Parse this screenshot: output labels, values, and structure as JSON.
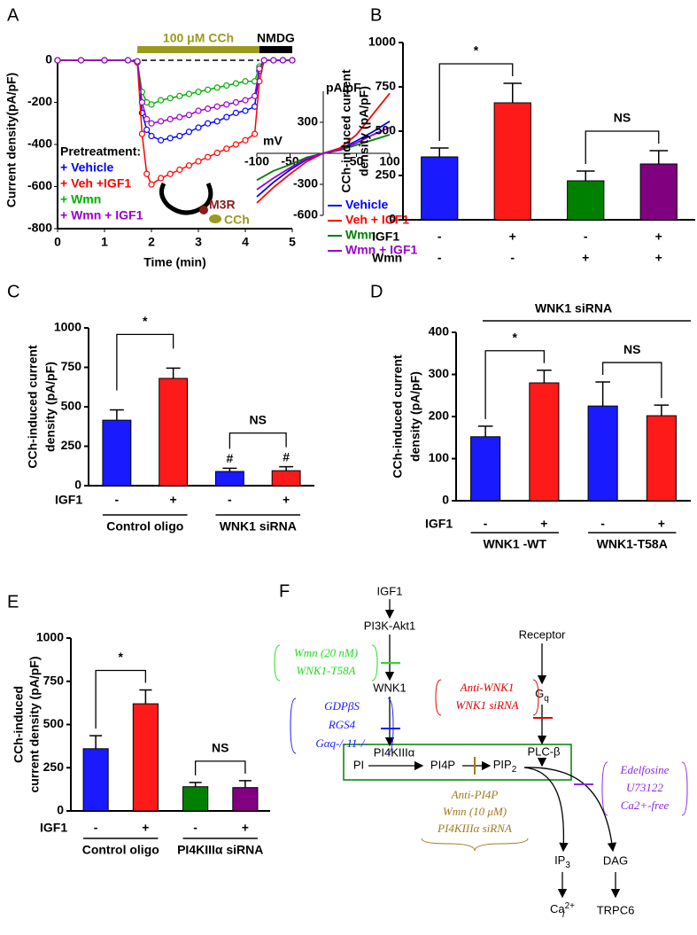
{
  "panel_labels": [
    "A",
    "B",
    "C",
    "D",
    "E",
    "F"
  ],
  "chart_data": [
    {
      "type": "line",
      "xlabel": "Time (min)",
      "ylabel": "Current density(pA/pF)",
      "x": [
        0,
        0.5,
        1,
        1.5,
        1.7,
        1.8,
        1.9,
        2.0,
        2.2,
        2.4,
        2.6,
        2.8,
        3.0,
        3.2,
        3.4,
        3.6,
        3.8,
        4.0,
        4.2,
        4.3,
        4.4,
        4.6,
        4.8,
        5.0
      ],
      "xlim": [
        0,
        5
      ],
      "xticks": [
        0,
        1,
        2,
        3,
        4,
        5
      ],
      "ylim": [
        -800,
        0
      ],
      "yticks": [
        -800,
        -600,
        -400,
        -200,
        0
      ],
      "markers": "circle",
      "legend_title": "Pretreatment:",
      "series": [
        {
          "name": "+ Vehicle",
          "color": "#0000ff",
          "values": [
            0,
            0,
            0,
            0,
            -10,
            -250,
            -330,
            -360,
            -380,
            -370,
            -360,
            -340,
            -320,
            -300,
            -290,
            -270,
            -250,
            -240,
            -220,
            -50,
            0,
            0,
            0,
            0
          ]
        },
        {
          "name": "+ Veh +IGF1",
          "color": "#ff0000",
          "values": [
            0,
            0,
            0,
            0,
            -10,
            -350,
            -540,
            -590,
            -560,
            -540,
            -520,
            -500,
            -480,
            -460,
            -440,
            -420,
            -400,
            -380,
            -350,
            -100,
            0,
            0,
            0,
            0
          ]
        },
        {
          "name": "+ Wmn",
          "color": "#00b000",
          "values": [
            0,
            0,
            0,
            0,
            -5,
            -150,
            -200,
            -210,
            -190,
            -180,
            -170,
            -160,
            -150,
            -140,
            -130,
            -120,
            -110,
            -100,
            -100,
            -30,
            0,
            0,
            0,
            0
          ]
        },
        {
          "name": "+ Wmn + IGF1",
          "color": "#9900cc",
          "values": [
            0,
            0,
            0,
            0,
            -5,
            -200,
            -280,
            -300,
            -290,
            -280,
            -270,
            -260,
            -240,
            -230,
            -220,
            -210,
            -200,
            -190,
            -170,
            -40,
            0,
            0,
            0,
            0
          ]
        }
      ],
      "stimuli": [
        {
          "label": "100 μM CCh",
          "start": 1.7,
          "end": 4.3,
          "color": "#9a9a1e"
        },
        {
          "label": "NMDG",
          "start": 4.3,
          "end": 5,
          "color": "#000000"
        }
      ],
      "annotations": [
        "M3R",
        "CCh"
      ]
    },
    {
      "type": "line",
      "xlabel": "mV",
      "ylabel": "pA/pF",
      "x": [
        -100,
        -75,
        -50,
        -25,
        0,
        25,
        50,
        75,
        100
      ],
      "xlim": [
        -100,
        100
      ],
      "xticks": [
        -100,
        -50,
        50,
        100
      ],
      "ylim": [
        -600,
        600
      ],
      "yticks": [
        -600,
        -300,
        300
      ],
      "series": [
        {
          "name": "Vehicle",
          "color": "#0000ff",
          "values": [
            -420,
            -280,
            -160,
            -60,
            0,
            40,
            120,
            210,
            310
          ]
        },
        {
          "name": "Veh + IGF1",
          "color": "#ff0000",
          "values": [
            -480,
            -330,
            -200,
            -80,
            0,
            50,
            180,
            380,
            580
          ]
        },
        {
          "name": "Wmn",
          "color": "#008000",
          "values": [
            -260,
            -170,
            -110,
            -40,
            0,
            30,
            80,
            130,
            180
          ]
        },
        {
          "name": "Wmn + IGF1",
          "color": "#9900cc",
          "values": [
            -350,
            -240,
            -140,
            -50,
            0,
            35,
            100,
            180,
            250
          ]
        }
      ]
    },
    {
      "type": "bar",
      "ylabel": [
        "CCh-induced current",
        "density (pA/pF)"
      ],
      "ylim": [
        0,
        1000
      ],
      "yticks": [
        0,
        250,
        500,
        750,
        1000
      ],
      "values": [
        355,
        660,
        220,
        315
      ],
      "errors": [
        50,
        110,
        55,
        75
      ],
      "colors": [
        "#1a1aff",
        "#ff1a1a",
        "#008000",
        "#800080"
      ],
      "rows": [
        {
          "label": "IGF1",
          "signs": [
            "-",
            "+",
            "-",
            "+"
          ]
        },
        {
          "label": "Wmn",
          "signs": [
            "-",
            "-",
            "+",
            "+"
          ]
        }
      ],
      "brackets": [
        {
          "label": "*",
          "bars": [
            0,
            1
          ]
        },
        {
          "label": "NS",
          "bars": [
            2,
            3
          ]
        }
      ]
    },
    {
      "type": "bar",
      "ylabel": [
        "CCh-induced current",
        "density (pA/pF)"
      ],
      "ylim": [
        0,
        1000
      ],
      "yticks": [
        0,
        250,
        500,
        750,
        1000
      ],
      "values": [
        415,
        680,
        90,
        95
      ],
      "errors": [
        65,
        65,
        20,
        25
      ],
      "colors": [
        "#1a1aff",
        "#ff1a1a",
        "#1a1aff",
        "#ff1a1a"
      ],
      "rows": [
        {
          "label": "IGF1",
          "signs": [
            "-",
            "+",
            "-",
            "+"
          ]
        }
      ],
      "groups": [
        "Control oligo",
        "WNK1 siRNA"
      ],
      "bar_marks": [
        {
          "bar": 2,
          "label": "#"
        },
        {
          "bar": 3,
          "label": "#"
        }
      ],
      "brackets": [
        {
          "label": "*",
          "bars": [
            0,
            1
          ]
        },
        {
          "label": "NS",
          "bars": [
            2,
            3
          ]
        }
      ]
    },
    {
      "type": "bar",
      "header": "WNK1 siRNA",
      "ylabel": [
        "CCh-induced current",
        "density (pA/pF)"
      ],
      "ylim": [
        0,
        400
      ],
      "yticks": [
        0,
        100,
        200,
        300,
        400
      ],
      "values": [
        152,
        280,
        225,
        202
      ],
      "errors": [
        25,
        30,
        57,
        25
      ],
      "colors": [
        "#1a1aff",
        "#ff1a1a",
        "#1a1aff",
        "#ff1a1a"
      ],
      "rows": [
        {
          "label": "IGF1",
          "signs": [
            "-",
            "+",
            "-",
            "+"
          ]
        }
      ],
      "groups": [
        "WNK1 -WT",
        "WNK1-T58A"
      ],
      "brackets": [
        {
          "label": "*",
          "bars": [
            0,
            1
          ]
        },
        {
          "label": "NS",
          "bars": [
            2,
            3
          ]
        }
      ]
    },
    {
      "type": "bar",
      "ylabel": [
        "CCh-induced",
        "current density (pA/pF)"
      ],
      "ylim": [
        0,
        1000
      ],
      "yticks": [
        0,
        250,
        500,
        750,
        1000
      ],
      "values": [
        360,
        620,
        140,
        135
      ],
      "errors": [
        75,
        80,
        25,
        40
      ],
      "colors": [
        "#1a1aff",
        "#ff1a1a",
        "#008000",
        "#800080"
      ],
      "rows": [
        {
          "label": "IGF1",
          "signs": [
            "-",
            "+",
            "-",
            "+"
          ]
        }
      ],
      "groups": [
        "Control oligo",
        "PI4KIIIα siRNA"
      ],
      "brackets": [
        {
          "label": "*",
          "bars": [
            0,
            1
          ]
        },
        {
          "label": "NS",
          "bars": [
            2,
            3
          ]
        }
      ]
    }
  ],
  "diagram": {
    "nodes": {
      "igf1": "IGF1",
      "pi3k": "PI3K-Akt1",
      "wnk1": "WNK1",
      "receptor": "Receptor",
      "gq": {
        "text": "G",
        "sub": "q"
      },
      "pi": "PI",
      "pi4k": "PI4KIIIα",
      "pi4p": "PI4P",
      "pip2": {
        "text": "PIP",
        "sub": "2"
      },
      "plc": "PLC-β",
      "ip3": {
        "text": "IP",
        "sub": "3"
      },
      "dag": "DAG",
      "ca": {
        "text": "Ca",
        "sup": "2+",
        "sub": "i"
      },
      "trpc6": "TRPC6"
    },
    "inhibitors": [
      {
        "color": "#22dd22",
        "lines": [
          "Wmn (20 nM)",
          "WNK1-T58A"
        ]
      },
      {
        "color": "#1a1aff",
        "lines": [
          "GDPβS",
          "RGS4",
          "Gαq-/-11-/-"
        ]
      },
      {
        "color": "#e00000",
        "lines": [
          "Anti-WNK1",
          "WNK1 siRNA"
        ]
      },
      {
        "color": "#a07a20",
        "lines": [
          "Anti-PI4P",
          "Wmn (10 μM)",
          "PI4KIIIα siRNA"
        ]
      },
      {
        "color": "#8a2be2",
        "lines": [
          "Edelfosine",
          "U73122",
          "Ca2+-free"
        ]
      }
    ]
  }
}
